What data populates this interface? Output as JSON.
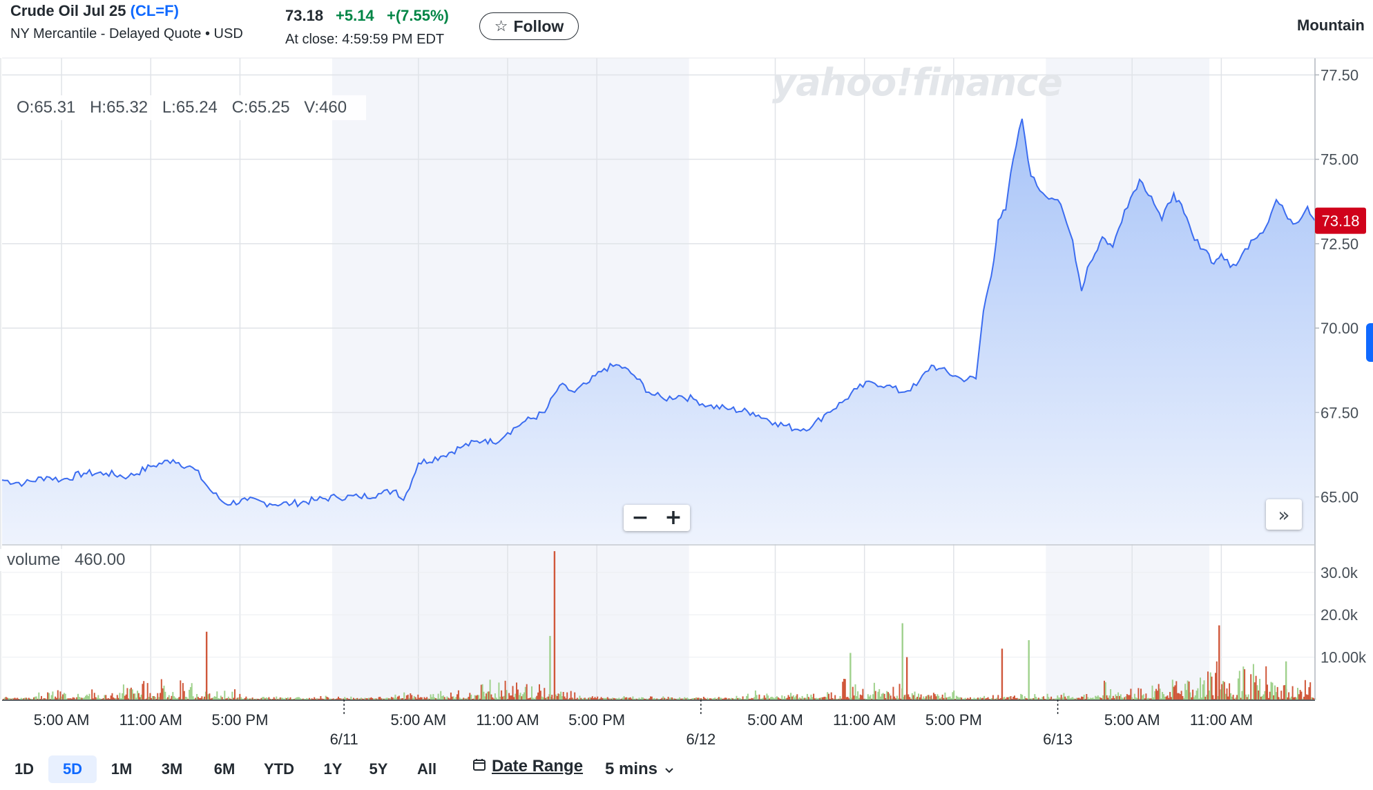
{
  "header": {
    "title_name": "Crude Oil Jul 25",
    "title_symbol": "(CL=F)",
    "subtitle": "NY Mercantile - Delayed Quote • USD",
    "price": "73.18",
    "change": "+5.14",
    "change_pct": "+(7.55%)",
    "close_time": "At close: 4:59:59 PM EDT",
    "follow_label": "Follow",
    "follow_icon": "star-icon",
    "right_label": "Mountain"
  },
  "legend": {
    "open": "O:65.31",
    "high": "H:65.32",
    "low": "L:65.24",
    "close": "C:65.25",
    "volume": "V:460",
    "volume_label": "volume",
    "volume_value": "460.00"
  },
  "watermark": "yahoo!finance",
  "zoom": {
    "minus": "−",
    "plus": "+"
  },
  "more_icon": "double-chevron-right-icon",
  "range_buttons": [
    "1D",
    "5D",
    "1M",
    "3M",
    "6M",
    "YTD",
    "1Y",
    "5Y",
    "All"
  ],
  "active_range": "5D",
  "date_range_label": "Date Range",
  "date_range_icon": "calendar-icon",
  "interval_label": "5 mins",
  "interval_icon": "chevron-down-icon",
  "colors": {
    "line": "#3b6cf0",
    "fill_top": "#a8c4f8",
    "fill_bottom": "#eef3fd",
    "up_volume": "#9fd18c",
    "down_volume": "#d0573a",
    "price_tag": "#d0021b",
    "positive": "#008545",
    "accent": "#0f69ff"
  },
  "chart_data": {
    "type": "line",
    "title": "",
    "xlabel": "",
    "ylabel": "",
    "ylim": [
      63.6,
      78.0
    ],
    "y_ticks": [
      "77.50",
      "75.00",
      "72.50",
      "70.00",
      "67.50",
      "65.00"
    ],
    "y_tick_values": [
      77.5,
      75.0,
      72.5,
      70.0,
      67.5,
      65.0
    ],
    "last_price_tag": "73.18",
    "x_time_labels": [
      "5:00 AM",
      "11:00 AM",
      "5:00 PM",
      "5:00 AM",
      "11:00 AM",
      "5:00 PM",
      "5:00 AM",
      "11:00 AM",
      "5:00 PM",
      "5:00 AM",
      "11:00 AM"
    ],
    "x_time_hours": [
      5,
      11,
      17,
      29,
      35,
      41,
      53,
      59,
      65,
      77,
      83
    ],
    "date_labels": [
      "6/11",
      "6/12",
      "6/13"
    ],
    "date_hours": [
      24,
      48,
      72
    ],
    "x_hours_range": [
      1,
      89.3
    ],
    "shaded_hour_ranges": [
      [
        23.2,
        47.2
      ],
      [
        71.2,
        82.2
      ]
    ],
    "series": [
      {
        "x_hours": [
          1,
          2.5,
          4,
          5,
          6.5,
          8,
          9.5,
          11,
          12.5,
          14,
          15,
          16,
          17.5,
          19,
          20.5,
          22,
          23.5,
          25,
          26.5,
          27.5,
          28,
          29,
          30.5,
          32,
          33.5,
          34,
          35,
          36,
          37.5,
          38.5,
          39.5,
          40.5,
          41.5,
          42.5,
          43.5,
          44.5,
          45.5,
          46.5,
          47.5,
          48.5,
          50,
          51.5,
          53,
          54.5,
          55.5,
          56.5,
          57.5,
          58.5,
          59.5,
          60.5,
          61.5,
          62.5,
          63.5,
          64,
          65.5,
          66.5,
          67,
          67.7,
          68,
          68.5,
          69,
          69.6,
          70.2,
          71,
          72,
          73,
          73.6,
          74,
          74.5,
          75,
          75.7,
          76.5,
          77.5,
          78.3,
          79,
          79.8,
          80.5,
          81.2,
          82,
          82.5,
          83,
          83.6,
          84.2,
          85,
          86,
          86.7,
          87.3,
          88,
          88.8,
          89.3
        ],
        "values": [
          65.5,
          65.4,
          65.6,
          65.5,
          65.7,
          65.7,
          65.6,
          65.9,
          66.1,
          65.8,
          65.2,
          64.8,
          64.9,
          64.8,
          64.8,
          64.9,
          65.0,
          65.0,
          65.1,
          65.2,
          64.9,
          66.0,
          66.2,
          66.5,
          66.7,
          66.6,
          66.9,
          67.2,
          67.5,
          68.3,
          68.1,
          68.4,
          68.8,
          68.9,
          68.6,
          68.1,
          67.9,
          68.0,
          67.9,
          67.7,
          67.6,
          67.5,
          67.2,
          67.0,
          67.1,
          67.5,
          67.8,
          68.2,
          68.4,
          68.3,
          68.1,
          68.3,
          68.9,
          68.8,
          68.5,
          68.5,
          70.5,
          72.0,
          73.2,
          73.5,
          75.0,
          76.2,
          74.5,
          74.0,
          73.8,
          72.6,
          71.1,
          71.8,
          72.2,
          72.7,
          72.4,
          73.5,
          74.4,
          73.9,
          73.2,
          74.0,
          73.4,
          72.6,
          72.3,
          71.9,
          72.2,
          71.8,
          72.0,
          72.6,
          73.0,
          73.8,
          73.4,
          73.1,
          73.6,
          73.18
        ]
      },
      {
        "name": "volume",
        "y_ticks": [
          "30.0k",
          "20.0k",
          "10.00k"
        ],
        "y_tick_values": [
          30000,
          20000,
          10000
        ],
        "spikes": [
          {
            "hour": 14.7,
            "value": 16000,
            "dir": "down"
          },
          {
            "hour": 38.1,
            "value": 35000,
            "dir": "down"
          },
          {
            "hour": 37.8,
            "value": 15000,
            "dir": "up"
          },
          {
            "hour": 58.0,
            "value": 11000,
            "dir": "up"
          },
          {
            "hour": 61.5,
            "value": 18000,
            "dir": "up"
          },
          {
            "hour": 61.8,
            "value": 10000,
            "dir": "down"
          },
          {
            "hour": 68.2,
            "value": 12000,
            "dir": "down"
          },
          {
            "hour": 70.0,
            "value": 14000,
            "dir": "up"
          },
          {
            "hour": 82.8,
            "value": 17500,
            "dir": "down"
          },
          {
            "hour": 87.3,
            "value": 9000,
            "dir": "up"
          }
        ]
      }
    ]
  }
}
